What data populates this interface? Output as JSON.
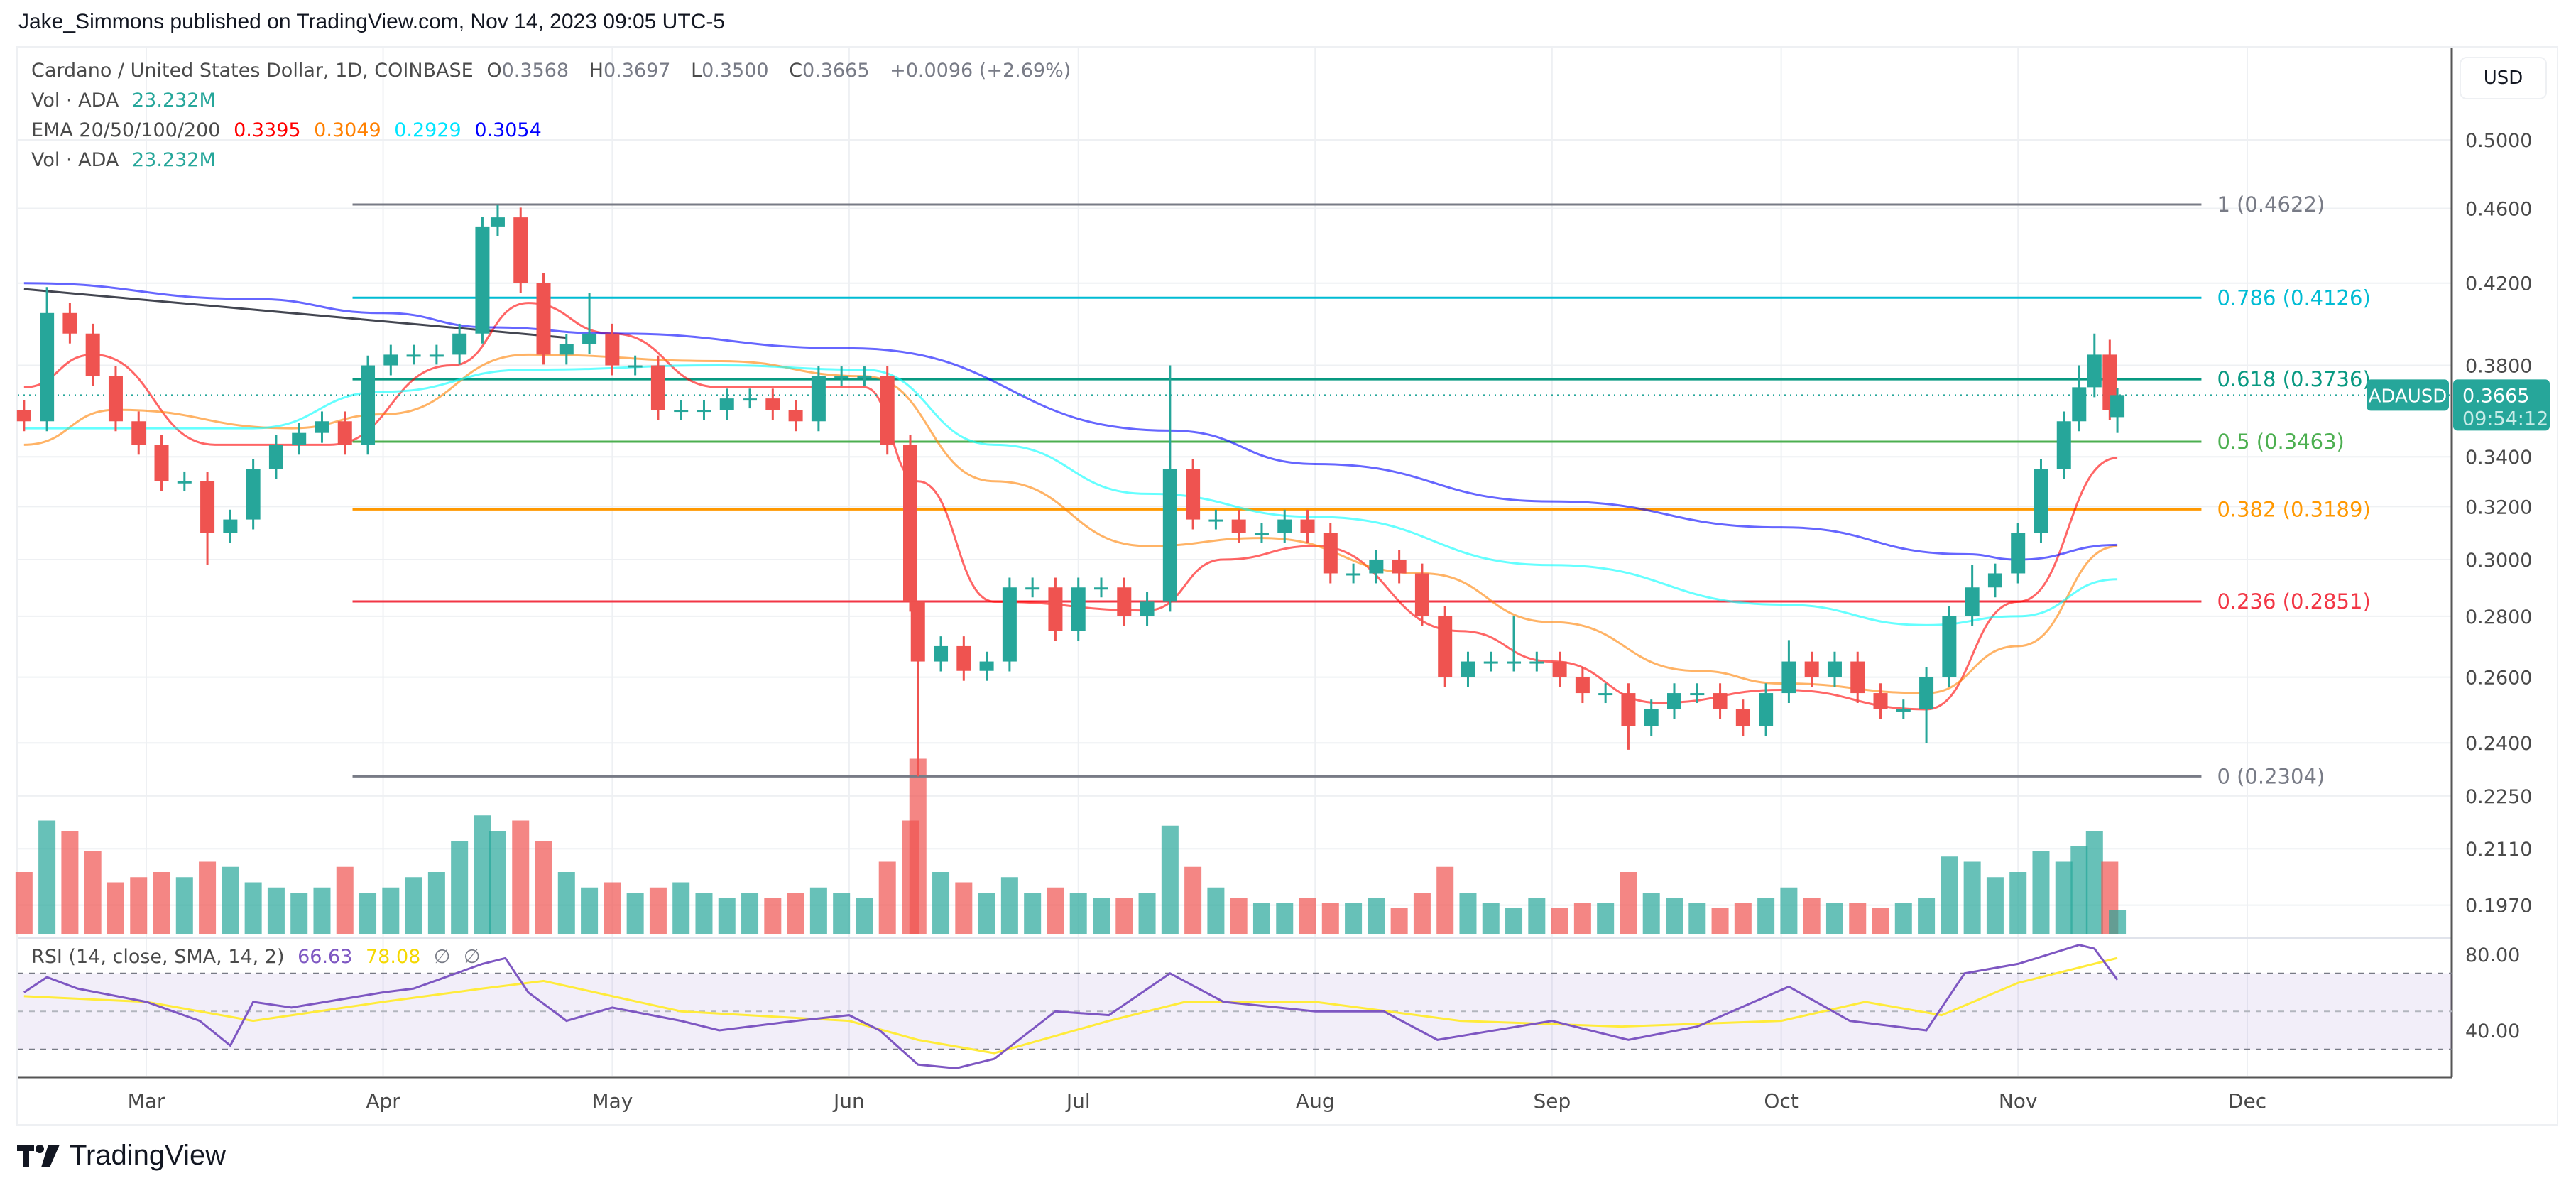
{
  "publisher": "Jake_Simmons published on TradingView.com, Nov 14, 2023 09:05 UTC-5",
  "legend": {
    "symbol": "Cardano / United States Dollar, 1D, COINBASE",
    "o_label": "O",
    "o": "0.3568",
    "h_label": "H",
    "h": "0.3697",
    "l_label": "L",
    "l": "0.3500",
    "c_label": "C",
    "c": "0.3665",
    "change": "+0.0096 (+2.69%)",
    "vol1_label": "Vol · ADA",
    "vol1": "23.232M",
    "ema_label": "EMA 20/50/100/200",
    "ema20": "0.3395",
    "ema50": "0.3049",
    "ema100": "0.2929",
    "ema200": "0.3054",
    "vol2_label": "Vol · ADA",
    "vol2": "23.232M",
    "rsi_label": "RSI (14, close, SMA, 14, 2)",
    "rsi": "66.63",
    "rsi_sma": "78.08",
    "rsi_na1": "∅",
    "rsi_na2": "∅"
  },
  "currency": "USD",
  "last_price": {
    "symbol": "ADAUSD",
    "price": "0.3665",
    "countdown": "09:54:12",
    "value": 0.3665
  },
  "brand": "TradingView",
  "colors": {
    "up": "#26a69a",
    "down": "#ef5350",
    "ema20": "#ff0000",
    "ema50": "#ff8000",
    "ema100": "#00ffff",
    "ema200": "#0000ff",
    "rsi": "#7e57c2",
    "rsi_sma": "#ffeb3b",
    "accent": "#26a69a"
  },
  "chart_data": {
    "type": "candlestick",
    "scale": "log",
    "grid": true,
    "price_ticks": [
      "0.5000",
      "0.4600",
      "0.4200",
      "0.3800",
      "0.3400",
      "0.3200",
      "0.3000",
      "0.2800",
      "0.2600",
      "0.2400",
      "0.2250",
      "0.2110",
      "0.1970"
    ],
    "month_ticks": [
      {
        "label": "Mar",
        "date": "2023-03-01"
      },
      {
        "label": "Apr",
        "date": "2023-04-01"
      },
      {
        "label": "May",
        "date": "2023-05-01"
      },
      {
        "label": "Jun",
        "date": "2023-06-01"
      },
      {
        "label": "Jul",
        "date": "2023-07-01"
      },
      {
        "label": "Aug",
        "date": "2023-08-01"
      },
      {
        "label": "Sep",
        "date": "2023-09-01"
      },
      {
        "label": "Oct",
        "date": "2023-10-01"
      },
      {
        "label": "Nov",
        "date": "2023-11-01"
      },
      {
        "label": "Dec",
        "date": "2023-12-01"
      }
    ],
    "candles": [
      {
        "d": "2023-02-13",
        "o": 0.36,
        "c": 0.355,
        "v": 60
      },
      {
        "d": "2023-02-16",
        "c": 0.405,
        "h": 0.418,
        "v": 110
      },
      {
        "d": "2023-02-19",
        "c": 0.395,
        "v": 100
      },
      {
        "d": "2023-02-22",
        "c": 0.375,
        "v": 80
      },
      {
        "d": "2023-02-25",
        "c": 0.355,
        "v": 50
      },
      {
        "d": "2023-02-28",
        "c": 0.345,
        "v": 55
      },
      {
        "d": "2023-03-03",
        "c": 0.33,
        "v": 60
      },
      {
        "d": "2023-03-06",
        "c": 0.33,
        "v": 55
      },
      {
        "d": "2023-03-09",
        "c": 0.31,
        "l": 0.298,
        "v": 70
      },
      {
        "d": "2023-03-12",
        "c": 0.315,
        "v": 65
      },
      {
        "d": "2023-03-15",
        "c": 0.335,
        "v": 50
      },
      {
        "d": "2023-03-18",
        "c": 0.345,
        "v": 45
      },
      {
        "d": "2023-03-21",
        "c": 0.35,
        "v": 40
      },
      {
        "d": "2023-03-24",
        "c": 0.355,
        "v": 45
      },
      {
        "d": "2023-03-27",
        "c": 0.345,
        "v": 65
      },
      {
        "d": "2023-03-30",
        "c": 0.38,
        "v": 40
      },
      {
        "d": "2023-04-02",
        "c": 0.385,
        "v": 45
      },
      {
        "d": "2023-04-05",
        "c": 0.385,
        "v": 55
      },
      {
        "d": "2023-04-08",
        "c": 0.385,
        "v": 60
      },
      {
        "d": "2023-04-11",
        "c": 0.395,
        "v": 90
      },
      {
        "d": "2023-04-14",
        "c": 0.45,
        "v": 115
      },
      {
        "d": "2023-04-16",
        "c": 0.455,
        "h": 0.4622,
        "v": 100
      },
      {
        "d": "2023-04-19",
        "c": 0.42,
        "v": 110
      },
      {
        "d": "2023-04-22",
        "c": 0.385,
        "v": 90
      },
      {
        "d": "2023-04-25",
        "c": 0.39,
        "v": 60
      },
      {
        "d": "2023-04-28",
        "c": 0.395,
        "h": 0.415,
        "v": 45
      },
      {
        "d": "2023-05-01",
        "c": 0.38,
        "v": 50
      },
      {
        "d": "2023-05-04",
        "c": 0.38,
        "v": 40
      },
      {
        "d": "2023-05-07",
        "c": 0.36,
        "v": 45
      },
      {
        "d": "2023-05-10",
        "c": 0.36,
        "v": 50
      },
      {
        "d": "2023-05-13",
        "c": 0.36,
        "v": 40
      },
      {
        "d": "2023-05-16",
        "c": 0.365,
        "v": 35
      },
      {
        "d": "2023-05-19",
        "c": 0.365,
        "v": 40
      },
      {
        "d": "2023-05-22",
        "c": 0.36,
        "v": 35
      },
      {
        "d": "2023-05-25",
        "c": 0.355,
        "v": 40
      },
      {
        "d": "2023-05-28",
        "c": 0.375,
        "v": 45
      },
      {
        "d": "2023-05-31",
        "c": 0.375,
        "v": 40
      },
      {
        "d": "2023-06-03",
        "c": 0.375,
        "v": 35
      },
      {
        "d": "2023-06-06",
        "c": 0.345,
        "v": 70
      },
      {
        "d": "2023-06-09",
        "c": 0.285,
        "v": 110
      },
      {
        "d": "2023-06-10",
        "c": 0.265,
        "h": 0.285,
        "l": 0.2304,
        "v": 170
      },
      {
        "d": "2023-06-13",
        "c": 0.27,
        "v": 60
      },
      {
        "d": "2023-06-16",
        "c": 0.262,
        "v": 50
      },
      {
        "d": "2023-06-19",
        "c": 0.265,
        "v": 40
      },
      {
        "d": "2023-06-22",
        "c": 0.29,
        "v": 55
      },
      {
        "d": "2023-06-25",
        "c": 0.29,
        "v": 40
      },
      {
        "d": "2023-06-28",
        "c": 0.275,
        "v": 45
      },
      {
        "d": "2023-07-01",
        "c": 0.29,
        "v": 40
      },
      {
        "d": "2023-07-04",
        "c": 0.29,
        "v": 35
      },
      {
        "d": "2023-07-07",
        "c": 0.28,
        "v": 35
      },
      {
        "d": "2023-07-10",
        "c": 0.285,
        "v": 40
      },
      {
        "d": "2023-07-13",
        "c": 0.335,
        "h": 0.38,
        "v": 105
      },
      {
        "d": "2023-07-16",
        "c": 0.315,
        "v": 65
      },
      {
        "d": "2023-07-19",
        "c": 0.315,
        "v": 45
      },
      {
        "d": "2023-07-22",
        "c": 0.31,
        "v": 35
      },
      {
        "d": "2023-07-25",
        "c": 0.31,
        "v": 30
      },
      {
        "d": "2023-07-28",
        "c": 0.315,
        "v": 30
      },
      {
        "d": "2023-07-31",
        "c": 0.31,
        "v": 35
      },
      {
        "d": "2023-08-03",
        "c": 0.295,
        "v": 30
      },
      {
        "d": "2023-08-06",
        "c": 0.295,
        "v": 30
      },
      {
        "d": "2023-08-09",
        "c": 0.3,
        "v": 35
      },
      {
        "d": "2023-08-12",
        "c": 0.295,
        "v": 25
      },
      {
        "d": "2023-08-15",
        "c": 0.28,
        "v": 40
      },
      {
        "d": "2023-08-18",
        "c": 0.26,
        "v": 65
      },
      {
        "d": "2023-08-21",
        "c": 0.265,
        "v": 40
      },
      {
        "d": "2023-08-24",
        "c": 0.265,
        "v": 30
      },
      {
        "d": "2023-08-27",
        "c": 0.265,
        "h": 0.28,
        "v": 25
      },
      {
        "d": "2023-08-30",
        "c": 0.265,
        "v": 35
      },
      {
        "d": "2023-09-02",
        "c": 0.26,
        "v": 25
      },
      {
        "d": "2023-09-05",
        "c": 0.255,
        "v": 30
      },
      {
        "d": "2023-09-08",
        "c": 0.255,
        "v": 30
      },
      {
        "d": "2023-09-11",
        "c": 0.245,
        "l": 0.238,
        "v": 60
      },
      {
        "d": "2023-09-14",
        "c": 0.25,
        "v": 40
      },
      {
        "d": "2023-09-17",
        "c": 0.255,
        "v": 35
      },
      {
        "d": "2023-09-20",
        "c": 0.255,
        "v": 30
      },
      {
        "d": "2023-09-23",
        "c": 0.25,
        "v": 25
      },
      {
        "d": "2023-09-26",
        "c": 0.245,
        "v": 30
      },
      {
        "d": "2023-09-29",
        "c": 0.255,
        "v": 35
      },
      {
        "d": "2023-10-02",
        "c": 0.265,
        "h": 0.272,
        "v": 45
      },
      {
        "d": "2023-10-05",
        "c": 0.26,
        "v": 35
      },
      {
        "d": "2023-10-08",
        "c": 0.265,
        "v": 30
      },
      {
        "d": "2023-10-11",
        "c": 0.255,
        "v": 30
      },
      {
        "d": "2023-10-14",
        "c": 0.25,
        "v": 25
      },
      {
        "d": "2023-10-17",
        "c": 0.25,
        "v": 30
      },
      {
        "d": "2023-10-20",
        "c": 0.26,
        "l": 0.24,
        "v": 35
      },
      {
        "d": "2023-10-23",
        "c": 0.28,
        "v": 75
      },
      {
        "d": "2023-10-26",
        "c": 0.29,
        "h": 0.298,
        "v": 70
      },
      {
        "d": "2023-10-29",
        "c": 0.295,
        "v": 55
      },
      {
        "d": "2023-11-01",
        "c": 0.31,
        "v": 60
      },
      {
        "d": "2023-11-04",
        "c": 0.335,
        "v": 80
      },
      {
        "d": "2023-11-07",
        "c": 0.355,
        "v": 70
      },
      {
        "d": "2023-11-09",
        "c": 0.37,
        "h": 0.38,
        "v": 85
      },
      {
        "d": "2023-11-11",
        "c": 0.385,
        "h": 0.395,
        "v": 100
      },
      {
        "d": "2023-11-13",
        "c": 0.36,
        "h": 0.392,
        "v": 70
      },
      {
        "d": "2023-11-14",
        "o": 0.3568,
        "h": 0.3697,
        "l": 0.35,
        "c": 0.3665,
        "v": 23.232
      }
    ],
    "ema": [
      {
        "name": "EMA 20",
        "color": "#ff0000",
        "points": [
          [
            "2023-02-13",
            0.37
          ],
          [
            "2023-02-22",
            0.385
          ],
          [
            "2023-03-10",
            0.345
          ],
          [
            "2023-03-25",
            0.345
          ],
          [
            "2023-04-10",
            0.38
          ],
          [
            "2023-04-20",
            0.41
          ],
          [
            "2023-05-01",
            0.395
          ],
          [
            "2023-05-15",
            0.37
          ],
          [
            "2023-06-03",
            0.37
          ],
          [
            "2023-06-10",
            0.33
          ],
          [
            "2023-06-20",
            0.285
          ],
          [
            "2023-07-10",
            0.282
          ],
          [
            "2023-07-20",
            0.3
          ],
          [
            "2023-08-01",
            0.305
          ],
          [
            "2023-08-20",
            0.275
          ],
          [
            "2023-09-01",
            0.265
          ],
          [
            "2023-09-15",
            0.252
          ],
          [
            "2023-10-01",
            0.256
          ],
          [
            "2023-10-20",
            0.25
          ],
          [
            "2023-11-01",
            0.285
          ],
          [
            "2023-11-14",
            0.3395
          ]
        ]
      },
      {
        "name": "EMA 50",
        "color": "#ff8000",
        "points": [
          [
            "2023-02-13",
            0.345
          ],
          [
            "2023-02-25",
            0.36
          ],
          [
            "2023-03-20",
            0.352
          ],
          [
            "2023-04-01",
            0.358
          ],
          [
            "2023-04-20",
            0.385
          ],
          [
            "2023-05-15",
            0.382
          ],
          [
            "2023-06-03",
            0.375
          ],
          [
            "2023-06-20",
            0.33
          ],
          [
            "2023-07-10",
            0.305
          ],
          [
            "2023-07-25",
            0.308
          ],
          [
            "2023-08-15",
            0.295
          ],
          [
            "2023-09-01",
            0.278
          ],
          [
            "2023-09-20",
            0.262
          ],
          [
            "2023-10-01",
            0.258
          ],
          [
            "2023-10-20",
            0.255
          ],
          [
            "2023-11-01",
            0.27
          ],
          [
            "2023-11-14",
            0.3049
          ]
        ]
      },
      {
        "name": "EMA 100",
        "color": "#00ffff",
        "points": [
          [
            "2023-02-13",
            0.352
          ],
          [
            "2023-03-15",
            0.352
          ],
          [
            "2023-04-01",
            0.368
          ],
          [
            "2023-04-20",
            0.378
          ],
          [
            "2023-05-15",
            0.38
          ],
          [
            "2023-06-03",
            0.378
          ],
          [
            "2023-06-20",
            0.345
          ],
          [
            "2023-07-10",
            0.325
          ],
          [
            "2023-08-01",
            0.316
          ],
          [
            "2023-09-01",
            0.298
          ],
          [
            "2023-10-01",
            0.284
          ],
          [
            "2023-10-20",
            0.277
          ],
          [
            "2023-11-01",
            0.28
          ],
          [
            "2023-11-14",
            0.2929
          ]
        ]
      },
      {
        "name": "EMA 200",
        "color": "#0000ff",
        "points": [
          [
            "2023-02-13",
            0.42
          ],
          [
            "2023-03-15",
            0.412
          ],
          [
            "2023-04-01",
            0.405
          ],
          [
            "2023-04-15",
            0.398
          ],
          [
            "2023-05-01",
            0.395
          ],
          [
            "2023-06-01",
            0.388
          ],
          [
            "2023-07-13",
            0.351
          ],
          [
            "2023-08-01",
            0.337
          ],
          [
            "2023-09-01",
            0.322
          ],
          [
            "2023-10-01",
            0.312
          ],
          [
            "2023-10-25",
            0.302
          ],
          [
            "2023-11-01",
            0.3
          ],
          [
            "2023-11-14",
            0.3054
          ]
        ]
      }
    ],
    "trendline": [
      [
        "2023-02-13",
        0.417
      ],
      [
        "2023-04-25",
        0.393
      ]
    ],
    "fib": {
      "from": "2023-03-28",
      "to": "2023-11-25",
      "levels": [
        {
          "label": "1 (0.4622)",
          "value": 0.4622,
          "color": "#787b86"
        },
        {
          "label": "0.786 (0.4126)",
          "value": 0.4126,
          "color": "#00bcd4"
        },
        {
          "label": "0.618 (0.3736)",
          "value": 0.3736,
          "color": "#089981"
        },
        {
          "label": "0.5 (0.3463)",
          "value": 0.3463,
          "color": "#4caf50"
        },
        {
          "label": "0.382 (0.3189)",
          "value": 0.3189,
          "color": "#ff9800"
        },
        {
          "label": "0.236 (0.2851)",
          "value": 0.2851,
          "color": "#f23645"
        },
        {
          "label": "0 (0.2304)",
          "value": 0.2304,
          "color": "#787b86"
        }
      ]
    },
    "rsi": {
      "ticks": [
        "80.00",
        "40.00"
      ],
      "bands": [
        70,
        50,
        30
      ],
      "range": [
        20,
        85
      ],
      "rsi": [
        [
          "2023-02-13",
          60
        ],
        [
          "2023-02-16",
          68
        ],
        [
          "2023-02-20",
          62
        ],
        [
          "2023-03-01",
          55
        ],
        [
          "2023-03-08",
          45
        ],
        [
          "2023-03-12",
          32
        ],
        [
          "2023-03-15",
          55
        ],
        [
          "2023-03-20",
          52
        ],
        [
          "2023-04-01",
          60
        ],
        [
          "2023-04-05",
          62
        ],
        [
          "2023-04-14",
          75
        ],
        [
          "2023-04-17",
          78
        ],
        [
          "2023-04-20",
          60
        ],
        [
          "2023-04-25",
          45
        ],
        [
          "2023-05-01",
          52
        ],
        [
          "2023-05-10",
          45
        ],
        [
          "2023-05-15",
          40
        ],
        [
          "2023-05-25",
          45
        ],
        [
          "2023-06-01",
          48
        ],
        [
          "2023-06-05",
          40
        ],
        [
          "2023-06-10",
          22
        ],
        [
          "2023-06-15",
          20
        ],
        [
          "2023-06-20",
          25
        ],
        [
          "2023-06-28",
          50
        ],
        [
          "2023-07-05",
          48
        ],
        [
          "2023-07-13",
          70
        ],
        [
          "2023-07-20",
          55
        ],
        [
          "2023-08-01",
          50
        ],
        [
          "2023-08-10",
          50
        ],
        [
          "2023-08-17",
          35
        ],
        [
          "2023-09-01",
          45
        ],
        [
          "2023-09-11",
          35
        ],
        [
          "2023-09-20",
          42
        ],
        [
          "2023-10-02",
          63
        ],
        [
          "2023-10-10",
          45
        ],
        [
          "2023-10-20",
          40
        ],
        [
          "2023-10-25",
          70
        ],
        [
          "2023-11-01",
          75
        ],
        [
          "2023-11-09",
          85
        ],
        [
          "2023-11-11",
          83
        ],
        [
          "2023-11-14",
          66.63
        ]
      ],
      "sma": [
        [
          "2023-02-13",
          58
        ],
        [
          "2023-03-01",
          55
        ],
        [
          "2023-03-15",
          45
        ],
        [
          "2023-04-01",
          55
        ],
        [
          "2023-04-14",
          62
        ],
        [
          "2023-04-22",
          66
        ],
        [
          "2023-05-10",
          50
        ],
        [
          "2023-06-01",
          45
        ],
        [
          "2023-06-10",
          35
        ],
        [
          "2023-06-20",
          28
        ],
        [
          "2023-07-05",
          45
        ],
        [
          "2023-07-15",
          55
        ],
        [
          "2023-08-01",
          55
        ],
        [
          "2023-08-20",
          45
        ],
        [
          "2023-09-10",
          42
        ],
        [
          "2023-10-01",
          45
        ],
        [
          "2023-10-12",
          55
        ],
        [
          "2023-10-22",
          48
        ],
        [
          "2023-11-01",
          65
        ],
        [
          "2023-11-14",
          78.08
        ]
      ]
    }
  }
}
